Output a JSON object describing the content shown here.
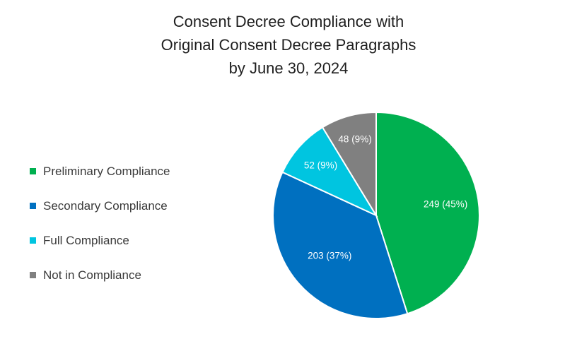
{
  "chart_data": {
    "type": "pie",
    "title": "Consent Decree Compliance with Original Consent Decree Paragraphs by June 30, 2024",
    "title_lines": [
      "Consent Decree Compliance with",
      "Original Consent Decree Paragraphs",
      "by June 30, 2024"
    ],
    "categories": [
      "Preliminary Compliance",
      "Secondary Compliance",
      "Full Compliance",
      "Not in Compliance"
    ],
    "values": [
      249,
      203,
      52,
      48
    ],
    "percent_labels": [
      "45%",
      "37%",
      "9%",
      "9%"
    ],
    "data_labels": [
      "249 (45%)",
      "203 (37%)",
      "52 (9%)",
      "48 (9%)"
    ],
    "colors": [
      "#00b050",
      "#0070c0",
      "#00c5e0",
      "#808080"
    ],
    "legend_position": "left"
  }
}
